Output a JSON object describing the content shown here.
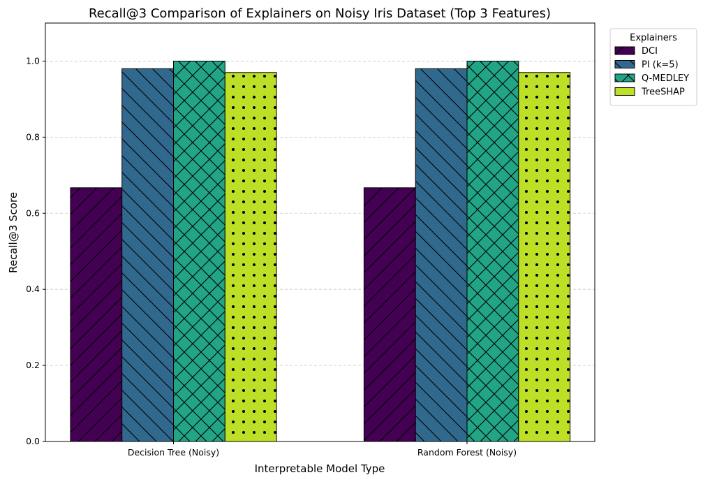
{
  "chart_data": {
    "type": "bar",
    "title": "Recall@3 Comparison of Explainers on Noisy Iris Dataset (Top 3 Features)",
    "xlabel": "Interpretable Model Type",
    "ylabel": "Recall@3 Score",
    "categories": [
      "Decision Tree (Noisy)",
      "Random Forest (Noisy)"
    ],
    "ylim": [
      0,
      1.1
    ],
    "yticks": [
      0.0,
      0.2,
      0.4,
      0.6,
      0.8,
      1.0
    ],
    "ytick_labels": [
      "0.0",
      "0.2",
      "0.4",
      "0.6",
      "0.8",
      "1.0"
    ],
    "grid": "y-dashed",
    "legend": {
      "title": "Explainers",
      "placement": "outside-top-right"
    },
    "series": [
      {
        "name": "DCI",
        "values": [
          0.667,
          0.667
        ],
        "color": "#440154",
        "hatch": "diagonal-forward"
      },
      {
        "name": "PI (k=5)",
        "values": [
          0.98,
          0.98
        ],
        "color": "#31688e",
        "hatch": "diagonal-back"
      },
      {
        "name": "Q-MEDLEY",
        "values": [
          1.0,
          1.0
        ],
        "color": "#21a585",
        "hatch": "crosshatch"
      },
      {
        "name": "TreeSHAP",
        "values": [
          0.97,
          0.97
        ],
        "color": "#bddf26",
        "hatch": "dots"
      }
    ]
  }
}
